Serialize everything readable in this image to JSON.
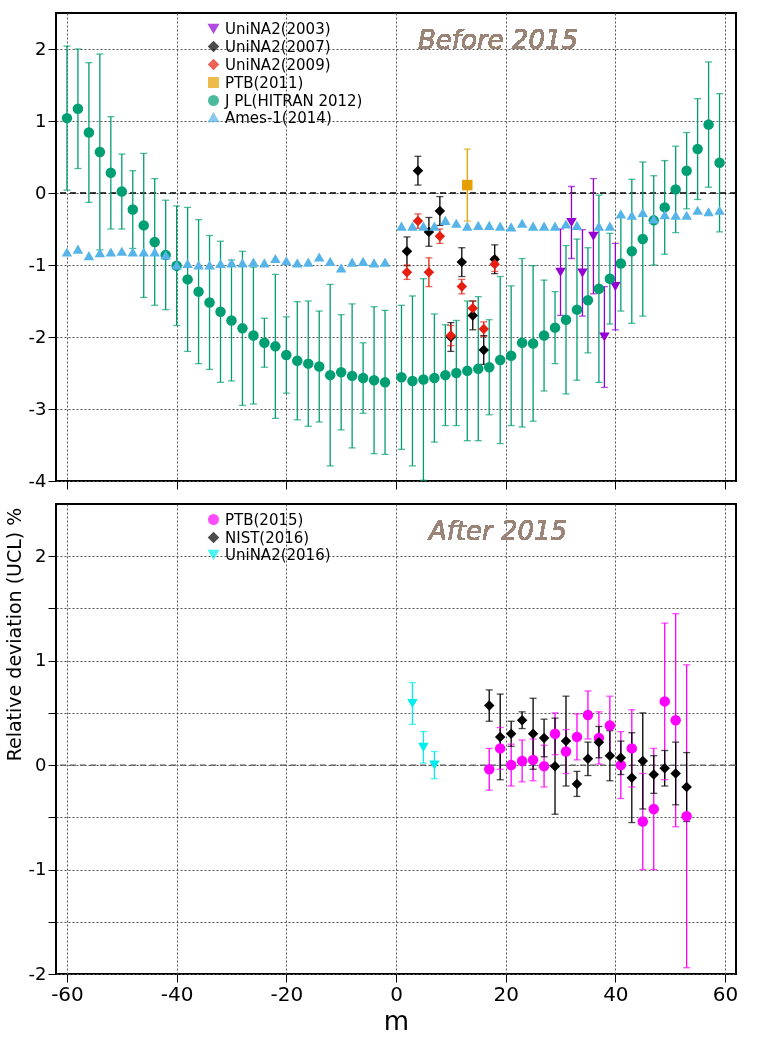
{
  "chart_data": [
    {
      "type": "scatter",
      "annotations": [
        "Before 2015"
      ],
      "xlim": [
        -62,
        62
      ],
      "ylim": [
        -4,
        2.5
      ],
      "xticks": [
        -60,
        -40,
        -20,
        0,
        20,
        40,
        60
      ],
      "yticks": [
        -4,
        -3,
        -2,
        -1,
        0,
        1,
        2
      ],
      "tick_labels": "y",
      "grid": true,
      "legend": "top left",
      "ref_lines": [
        {
          "axis": "y",
          "value": 0,
          "color": "#000000",
          "line_style": "dashed"
        }
      ],
      "series": [
        {
          "name": "UniNA2(2003)",
          "color": "#9400d3",
          "marker": "triangle-down",
          "x": [
            30,
            32,
            34,
            36,
            38,
            40
          ],
          "values": [
            -1.1,
            -0.41,
            -1.11,
            -0.6,
            -2.0,
            -1.3
          ],
          "errors": [
            0.6,
            0.5,
            0.6,
            0.8,
            0.7,
            0.6
          ]
        },
        {
          "name": "UniNA2(2007)",
          "color": "#000000",
          "marker": "diamond",
          "x": [
            2,
            4,
            6,
            8,
            10,
            12,
            14,
            16,
            18
          ],
          "values": [
            -0.81,
            0.31,
            -0.54,
            -0.25,
            -2.0,
            -0.96,
            -1.7,
            -2.18,
            -0.92
          ],
          "errors": [
            0.2,
            0.2,
            0.2,
            0.2,
            0.2,
            0.2,
            0.2,
            0.2,
            0.2
          ]
        },
        {
          "name": "UniNA2(2009)",
          "color": "#e51e10",
          "marker": "diamond",
          "x": [
            2,
            4,
            6,
            8,
            10,
            12,
            14,
            16,
            18
          ],
          "values": [
            -1.1,
            -0.39,
            -1.1,
            -0.6,
            -1.98,
            -1.3,
            -1.6,
            -1.89,
            -0.99
          ],
          "errors": [
            0.1,
            0.1,
            0.2,
            0.1,
            0.14,
            0.1,
            0.1,
            0.1,
            0.1
          ]
        },
        {
          "name": "PTB(2011)",
          "color": "#e69f00",
          "marker": "square",
          "x": [
            13
          ],
          "values": [
            0.11
          ],
          "errors": [
            0.5
          ]
        },
        {
          "name": "J PL(HITRAN 2012)",
          "color": "#009e73",
          "marker": "circle",
          "x": [
            -60,
            -58,
            -56,
            -54,
            -52,
            -50,
            -48,
            -46,
            -44,
            -42,
            -40,
            -38,
            -36,
            -34,
            -32,
            -30,
            -28,
            -26,
            -24,
            -22,
            -20,
            -18,
            -16,
            -14,
            -12,
            -10,
            -8,
            -6,
            -4,
            -2,
            1,
            3,
            5,
            7,
            9,
            11,
            13,
            15,
            17,
            19,
            21,
            23,
            25,
            27,
            29,
            31,
            33,
            35,
            37,
            39,
            41,
            43,
            45,
            47,
            49,
            51,
            53,
            55,
            57,
            59
          ],
          "values": [
            1.04,
            1.17,
            0.84,
            0.57,
            0.28,
            0.02,
            -0.23,
            -0.45,
            -0.68,
            -0.86,
            -1.01,
            -1.2,
            -1.37,
            -1.52,
            -1.65,
            -1.77,
            -1.88,
            -1.98,
            -2.08,
            -2.13,
            -2.25,
            -2.33,
            -2.37,
            -2.41,
            -2.53,
            -2.49,
            -2.54,
            -2.57,
            -2.6,
            -2.63,
            -2.56,
            -2.61,
            -2.59,
            -2.57,
            -2.53,
            -2.5,
            -2.47,
            -2.44,
            -2.42,
            -2.32,
            -2.26,
            -2.08,
            -2.09,
            -1.98,
            -1.87,
            -1.76,
            -1.62,
            -1.49,
            -1.33,
            -1.19,
            -0.98,
            -0.81,
            -0.64,
            -0.38,
            -0.2,
            0.05,
            0.31,
            0.61,
            0.95,
            0.42
          ],
          "errors": [
            1.0,
            0.83,
            0.97,
            1.36,
            0.78,
            0.52,
            0.54,
            1.0,
            0.88,
            0.76,
            0.83,
            1.0,
            1.0,
            0.93,
            0.98,
            0.84,
            1.07,
            0.95,
            0.34,
            1.0,
            0.53,
            0.82,
            0.87,
            0.77,
            1.26,
            0.8,
            1.0,
            0.49,
            1.02,
            1.0,
            1.0,
            1.18,
            1.4,
            0.89,
            0.7,
            0.73,
            0.97,
            1.0,
            0.66,
            1.16,
            0.97,
            1.17,
            1.08,
            0.77,
            0.5,
            1.03,
            0.98,
            0.73,
            1.3,
            0.63,
            0.66,
            1.0,
            1.07,
            0.62,
            0.65,
            0.6,
            0.53,
            0.7,
            0.87,
            0.96
          ]
        },
        {
          "name": "Ames-1(2014)",
          "color": "#56b4e9",
          "marker": "triangle",
          "x": [
            -60,
            -58,
            -56,
            -54,
            -52,
            -50,
            -48,
            -46,
            -44,
            -42,
            -40,
            -38,
            -36,
            -34,
            -32,
            -30,
            -28,
            -26,
            -24,
            -22,
            -20,
            -18,
            -16,
            -14,
            -12,
            -10,
            -8,
            -6,
            -4,
            -2,
            1,
            3,
            5,
            7,
            9,
            11,
            13,
            15,
            17,
            19,
            21,
            23,
            25,
            27,
            29,
            31,
            33,
            37,
            39,
            41,
            43,
            45,
            47,
            49,
            51,
            53,
            55,
            57,
            59
          ],
          "values": [
            -0.82,
            -0.78,
            -0.87,
            -0.83,
            -0.82,
            -0.81,
            -0.82,
            -0.82,
            -0.82,
            -0.86,
            -1.0,
            -0.98,
            -1.0,
            -1.0,
            -0.98,
            -0.97,
            -0.97,
            -0.96,
            -0.97,
            -0.91,
            -0.94,
            -0.97,
            -0.96,
            -0.89,
            -0.95,
            -1.04,
            -0.96,
            -0.95,
            -0.97,
            -0.96,
            -0.46,
            -0.46,
            -0.46,
            -0.46,
            -0.38,
            -0.42,
            -0.46,
            -0.45,
            -0.45,
            -0.46,
            -0.47,
            -0.42,
            -0.46,
            -0.46,
            -0.46,
            -0.43,
            -0.45,
            -0.46,
            -0.46,
            -0.29,
            -0.31,
            -0.27,
            -0.36,
            -0.3,
            -0.31,
            -0.31,
            -0.24,
            -0.26,
            -0.24
          ]
        }
      ]
    },
    {
      "type": "scatter",
      "annotations": [
        "After 2015"
      ],
      "xlabel": "m",
      "ylabel": "Relative deviation (UCL) %",
      "xlim": [
        -62,
        62
      ],
      "ylim": [
        -2,
        2.5
      ],
      "xticks": [
        -60,
        -40,
        -20,
        0,
        20,
        40,
        60
      ],
      "yticks": [
        -2,
        {
          "value": -1.5,
          "label": null
        },
        -1,
        {
          "value": -0.5,
          "label": null
        },
        0,
        {
          "value": 0.5,
          "label": null
        },
        1,
        {
          "value": 1.5,
          "label": null
        },
        2
      ],
      "grid": true,
      "legend": "top left",
      "ref_lines": [
        {
          "axis": "y",
          "value": 0,
          "color": "#555555",
          "line_style": "dashed"
        }
      ],
      "series": [
        {
          "name": "PTB(2015)",
          "color": "#ff00ff",
          "marker": "circle",
          "x": [
            17,
            19,
            21,
            23,
            25,
            27,
            29,
            31,
            33,
            35,
            37,
            39,
            41,
            43,
            45,
            47,
            49,
            51,
            53
          ],
          "values": [
            -0.04,
            0.16,
            0.0,
            0.04,
            0.05,
            -0.01,
            0.3,
            0.13,
            0.27,
            0.48,
            0.26,
            0.38,
            0.0,
            0.16,
            -0.54,
            -0.42,
            0.61,
            0.43,
            -0.49
          ],
          "errors": [
            0.2,
            0.2,
            0.2,
            0.2,
            0.2,
            0.2,
            0.2,
            0.21,
            0.22,
            0.23,
            0.25,
            0.28,
            0.32,
            0.37,
            0.46,
            0.58,
            0.75,
            1.02,
            1.45
          ]
        },
        {
          "name": "NIST(2016)",
          "color": "#000000",
          "marker": "diamond",
          "x": [
            17,
            19,
            21,
            23,
            25,
            27,
            29,
            31,
            33,
            35,
            37,
            39,
            41,
            43,
            45,
            47,
            49,
            51,
            53
          ],
          "values": [
            0.57,
            0.27,
            0.3,
            0.43,
            0.3,
            0.26,
            -0.01,
            0.23,
            -0.18,
            0.06,
            0.22,
            0.09,
            0.07,
            -0.12,
            0.04,
            -0.09,
            -0.03,
            -0.08,
            -0.21
          ],
          "errors": [
            0.15,
            0.41,
            0.12,
            0.08,
            0.34,
            0.18,
            0.46,
            0.43,
            0.12,
            0.16,
            0.15,
            0.24,
            0.16,
            0.43,
            0.46,
            0.18,
            0.17,
            0.3,
            0.33
          ]
        },
        {
          "name": "UniNA2(2016)",
          "color": "#00eeee",
          "marker": "triangle-down",
          "x": [
            3,
            5,
            7
          ],
          "values": [
            0.59,
            0.17,
            0.0
          ],
          "errors": [
            0.2,
            0.15,
            0.13
          ]
        }
      ]
    }
  ]
}
